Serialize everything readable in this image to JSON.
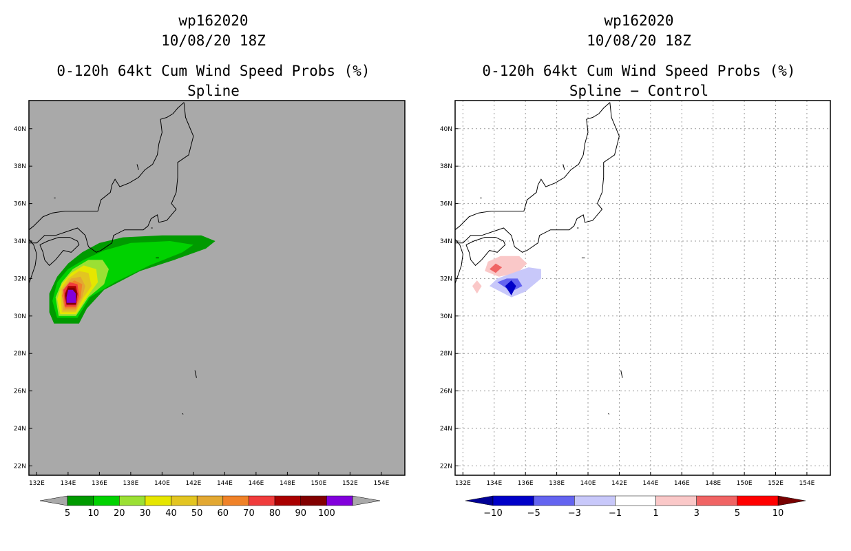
{
  "figure": {
    "panels": [
      {
        "storm_id": "wp162020",
        "date": "10/08/20 18Z",
        "product": "0-120h 64kt Cum Wind Speed Probs (%)",
        "subtitle": "Spline"
      },
      {
        "storm_id": "wp162020",
        "date": "10/08/20 18Z",
        "product": "0-120h 64kt Cum Wind Speed Probs (%)",
        "subtitle": "Spline − Control"
      }
    ]
  },
  "chart_data": [
    {
      "type": "filled-contour-map",
      "title": "0-120h 64kt Cum Wind Speed Probs (%)",
      "subtitle": "Spline",
      "xlim": [
        131.5,
        155.5
      ],
      "ylim": [
        21.5,
        41.5
      ],
      "x_ticks": [
        132,
        134,
        136,
        138,
        140,
        142,
        144,
        146,
        148,
        150,
        152,
        154
      ],
      "x_tick_labels": [
        "132E",
        "134E",
        "136E",
        "138E",
        "140E",
        "142E",
        "144E",
        "146E",
        "148E",
        "150E",
        "152E",
        "154E"
      ],
      "y_ticks": [
        22,
        24,
        26,
        28,
        30,
        32,
        34,
        36,
        38,
        40
      ],
      "y_tick_labels": [
        "22N",
        "24N",
        "26N",
        "28N",
        "30N",
        "32N",
        "34N",
        "36N",
        "38N",
        "40N"
      ],
      "grid": false,
      "background": "#a9a9a9",
      "colorbar": {
        "labels": [
          "5",
          "10",
          "20",
          "30",
          "40",
          "50",
          "60",
          "70",
          "80",
          "90",
          "100"
        ],
        "colors": [
          "#009a00",
          "#00d200",
          "#9be034",
          "#e6e600",
          "#e3c521",
          "#e3a832",
          "#f08228",
          "#f03c3c",
          "#aa0000",
          "#820000",
          "#8200dc"
        ],
        "end_colors": [
          "#a9a9a9",
          "#a9a9a9"
        ]
      },
      "regions": [
        {
          "level": 5,
          "color": "#009a00",
          "coords": [
            [
              133.1,
              29.6
            ],
            [
              134.7,
              29.6
            ],
            [
              135.2,
              30.4
            ],
            [
              136.3,
              31.4
            ],
            [
              138.6,
              32.4
            ],
            [
              140.8,
              33.0
            ],
            [
              142.8,
              33.6
            ],
            [
              143.4,
              34.0
            ],
            [
              142.5,
              34.3
            ],
            [
              140.0,
              34.3
            ],
            [
              137.5,
              34.2
            ],
            [
              136.0,
              33.9
            ],
            [
              134.9,
              33.4
            ],
            [
              134.0,
              32.8
            ],
            [
              133.3,
              32.1
            ],
            [
              132.8,
              31.2
            ],
            [
              132.8,
              30.2
            ]
          ]
        },
        {
          "level": 10,
          "color": "#00d200",
          "coords": [
            [
              133.3,
              29.9
            ],
            [
              134.6,
              29.9
            ],
            [
              135.4,
              31.0
            ],
            [
              137.0,
              31.8
            ],
            [
              139.2,
              32.7
            ],
            [
              141.3,
              33.4
            ],
            [
              142.0,
              33.8
            ],
            [
              140.5,
              34.0
            ],
            [
              138.0,
              33.9
            ],
            [
              136.3,
              33.5
            ],
            [
              135.0,
              33.0
            ],
            [
              134.0,
              32.5
            ],
            [
              133.3,
              31.8
            ],
            [
              133.0,
              30.8
            ]
          ]
        },
        {
          "level": 20,
          "color": "#9be034",
          "coords": [
            [
              133.4,
              30.0
            ],
            [
              134.5,
              30.0
            ],
            [
              135.3,
              31.0
            ],
            [
              136.3,
              31.7
            ],
            [
              136.6,
              32.5
            ],
            [
              136.2,
              33.0
            ],
            [
              135.3,
              33.0
            ],
            [
              134.3,
              32.5
            ],
            [
              133.6,
              31.8
            ],
            [
              133.2,
              31.0
            ]
          ]
        },
        {
          "level": 30,
          "color": "#e6e600",
          "coords": [
            [
              133.5,
              30.1
            ],
            [
              134.5,
              30.1
            ],
            [
              135.2,
              31.0
            ],
            [
              135.9,
              31.8
            ],
            [
              135.8,
              32.5
            ],
            [
              135.0,
              32.7
            ],
            [
              134.2,
              32.3
            ],
            [
              133.6,
              31.7
            ],
            [
              133.3,
              30.9
            ]
          ]
        },
        {
          "level": 40,
          "color": "#e3c521",
          "coords": [
            [
              133.6,
              30.2
            ],
            [
              134.5,
              30.2
            ],
            [
              135.0,
              31.0
            ],
            [
              135.5,
              31.6
            ],
            [
              135.3,
              32.3
            ],
            [
              134.7,
              32.4
            ],
            [
              134.0,
              32.0
            ],
            [
              133.5,
              31.4
            ]
          ]
        },
        {
          "level": 50,
          "color": "#e3a832",
          "coords": [
            [
              133.7,
              30.3
            ],
            [
              134.5,
              30.3
            ],
            [
              134.9,
              31.0
            ],
            [
              135.1,
              31.6
            ],
            [
              134.8,
              32.1
            ],
            [
              134.2,
              32.0
            ],
            [
              133.6,
              31.4
            ]
          ]
        },
        {
          "level": 60,
          "color": "#f08228",
          "coords": [
            [
              133.8,
              30.4
            ],
            [
              134.5,
              30.4
            ],
            [
              134.8,
              31.0
            ],
            [
              134.9,
              31.7
            ],
            [
              134.4,
              31.9
            ],
            [
              133.9,
              31.6
            ],
            [
              133.6,
              31.1
            ]
          ]
        },
        {
          "level": 70,
          "color": "#f03c3c",
          "coords": [
            [
              133.8,
              30.5
            ],
            [
              134.5,
              30.5
            ],
            [
              134.7,
              31.1
            ],
            [
              134.6,
              31.7
            ],
            [
              134.1,
              31.8
            ],
            [
              133.7,
              31.4
            ]
          ]
        },
        {
          "level": 80,
          "color": "#aa0000",
          "coords": [
            [
              133.9,
              30.6
            ],
            [
              134.5,
              30.6
            ],
            [
              134.6,
              31.2
            ],
            [
              134.5,
              31.6
            ],
            [
              134.0,
              31.6
            ],
            [
              133.8,
              31.2
            ]
          ]
        },
        {
          "level": 90,
          "color": "#820000",
          "coords": [
            [
              133.9,
              30.6
            ],
            [
              134.5,
              30.6
            ],
            [
              134.6,
              31.2
            ],
            [
              134.4,
              31.5
            ],
            [
              134.0,
              31.5
            ],
            [
              133.8,
              31.1
            ]
          ]
        },
        {
          "level": 100,
          "color": "#8200dc",
          "coords": [
            [
              133.9,
              30.7
            ],
            [
              134.5,
              30.7
            ],
            [
              134.5,
              31.2
            ],
            [
              134.3,
              31.4
            ],
            [
              134.0,
              31.4
            ],
            [
              133.9,
              31.0
            ]
          ]
        }
      ]
    },
    {
      "type": "filled-contour-map",
      "title": "0-120h 64kt Cum Wind Speed Probs (%)",
      "subtitle": "Spline − Control",
      "xlim": [
        131.5,
        155.5
      ],
      "ylim": [
        21.5,
        41.5
      ],
      "x_ticks": [
        132,
        134,
        136,
        138,
        140,
        142,
        144,
        146,
        148,
        150,
        152,
        154
      ],
      "x_tick_labels": [
        "132E",
        "134E",
        "136E",
        "138E",
        "140E",
        "142E",
        "144E",
        "146E",
        "148E",
        "150E",
        "152E",
        "154E"
      ],
      "y_ticks": [
        22,
        24,
        26,
        28,
        30,
        32,
        34,
        36,
        38,
        40
      ],
      "y_tick_labels": [
        "22N",
        "24N",
        "26N",
        "28N",
        "30N",
        "32N",
        "34N",
        "36N",
        "38N",
        "40N"
      ],
      "grid": true,
      "background": "#ffffff",
      "colorbar": {
        "labels": [
          "−10",
          "−5",
          "−3",
          "−1",
          "1",
          "3",
          "5",
          "10"
        ],
        "colors": [
          "#0000c8",
          "#6464f0",
          "#c8c8fa",
          "#ffffff",
          "#fac8c8",
          "#f06464",
          "#ff0000"
        ],
        "end_colors": [
          "#000096",
          "#780000"
        ]
      },
      "regions": [
        {
          "level": 1,
          "color": "#fac8c8",
          "coords": [
            [
              133.4,
              32.4
            ],
            [
              134.3,
              32.1
            ],
            [
              135.5,
              32.3
            ],
            [
              136.1,
              32.8
            ],
            [
              135.6,
              33.2
            ],
            [
              134.4,
              33.2
            ],
            [
              133.6,
              32.9
            ]
          ]
        },
        {
          "level": 3,
          "color": "#f06464",
          "coords": [
            [
              133.7,
              32.5
            ],
            [
              134.1,
              32.3
            ],
            [
              134.5,
              32.6
            ],
            [
              134.1,
              32.8
            ]
          ]
        },
        {
          "level": 1,
          "color": "#fac8c8",
          "coords": [
            [
              132.6,
              31.6
            ],
            [
              132.9,
              31.2
            ],
            [
              133.2,
              31.6
            ],
            [
              132.9,
              31.9
            ]
          ]
        },
        {
          "level": -1,
          "color": "#c8c8fa",
          "coords": [
            [
              133.7,
              31.6
            ],
            [
              135.1,
              31.0
            ],
            [
              136.0,
              31.3
            ],
            [
              137.0,
              32.0
            ],
            [
              137.0,
              32.5
            ],
            [
              136.2,
              32.6
            ],
            [
              135.2,
              32.3
            ],
            [
              134.2,
              32.0
            ]
          ]
        },
        {
          "level": -3,
          "color": "#6464f0",
          "coords": [
            [
              134.2,
              31.8
            ],
            [
              135.1,
              31.3
            ],
            [
              135.8,
              31.6
            ],
            [
              135.5,
              32.0
            ],
            [
              134.8,
              32.0
            ]
          ]
        },
        {
          "level": -5,
          "color": "#0000c8",
          "coords": [
            [
              134.7,
              31.6
            ],
            [
              135.1,
              31.1
            ],
            [
              135.4,
              31.6
            ],
            [
              135.1,
              31.9
            ]
          ]
        }
      ]
    }
  ]
}
